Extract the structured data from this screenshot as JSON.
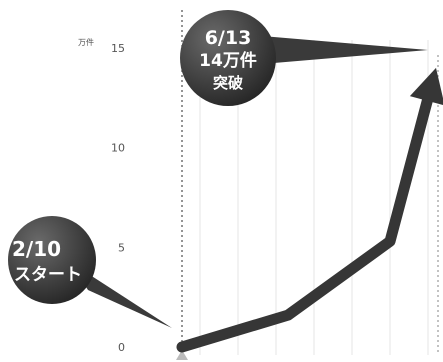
{
  "chart_data": {
    "type": "line",
    "y_unit": "万件",
    "y_ticks": [
      0,
      5,
      10,
      15
    ],
    "ylim": [
      0,
      15
    ],
    "points": [
      {
        "x": "2/10",
        "y": 0
      },
      {
        "x": "",
        "y": 1.6
      },
      {
        "x": "",
        "y": 5.3
      },
      {
        "x": "6/13",
        "y": 14
      }
    ],
    "grid": true,
    "annotations": [
      {
        "id": "start",
        "lines": [
          "2/10",
          "スタート"
        ]
      },
      {
        "id": "end",
        "lines": [
          "6/13",
          "14万件",
          "突破"
        ]
      }
    ],
    "colors": {
      "line": "#363636",
      "bubble": "#3a3a3a",
      "grid": "#e6e6e6",
      "marker_line": "#666666"
    }
  }
}
